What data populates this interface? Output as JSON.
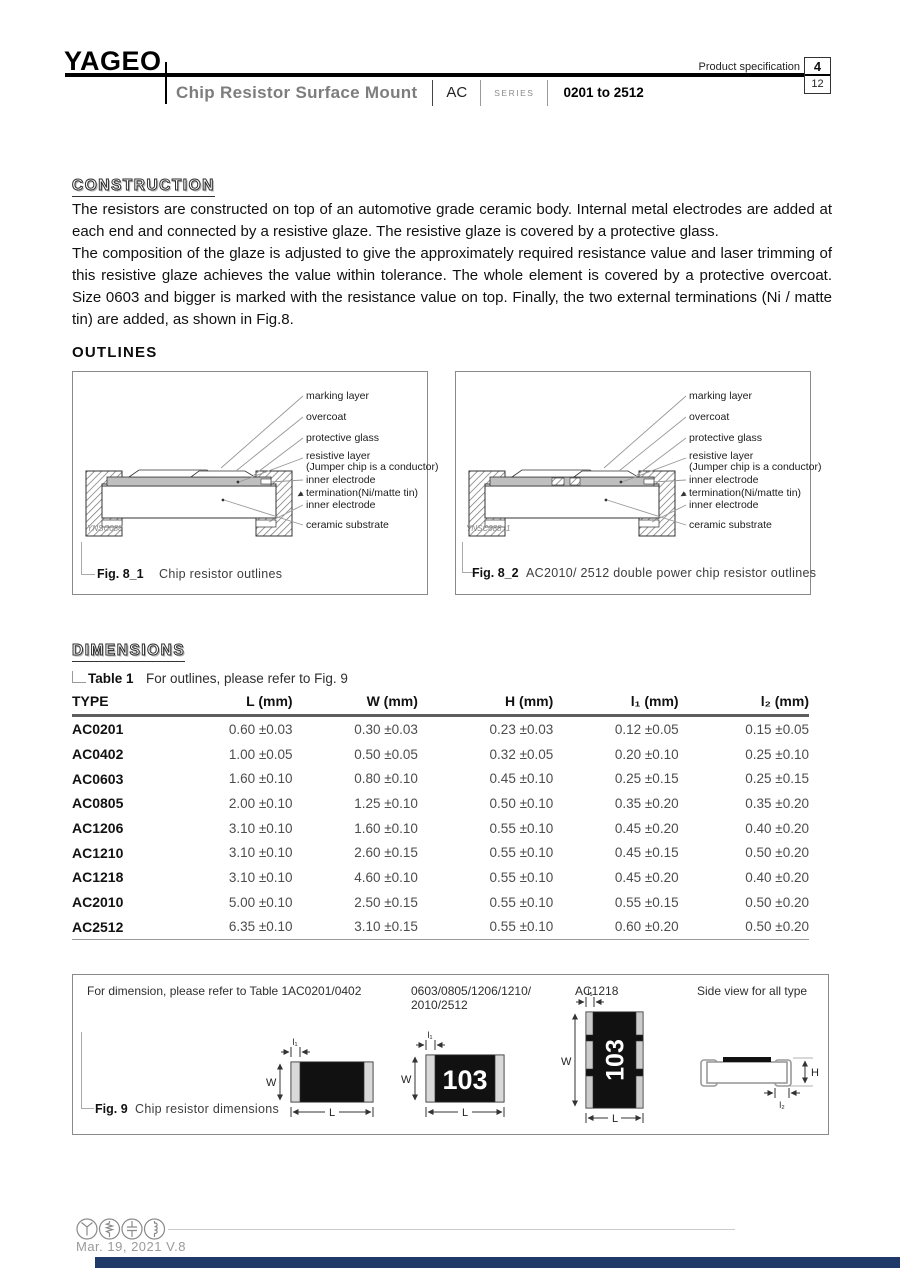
{
  "header": {
    "logo": "YAGEO",
    "product_spec": "Product specification",
    "page_num": "4",
    "page_total": "12",
    "title": "Chip Resistor Surface Mount",
    "series_code": "AC",
    "series_word": "SERIES",
    "series_range": "0201 to 2512"
  },
  "construction": {
    "heading": "CONSTRUCTION",
    "body1": "The resistors are constructed on top of an automotive grade ceramic body. Internal metal electrodes are added at each end and connected by a resistive glaze. The resistive glaze is covered by a protective glass.",
    "body2": "The composition of the glaze is adjusted to give the approximately required resistance value and laser trimming of this resistive glaze achieves the value within tolerance. The whole element is covered by a protective overcoat. Size 0603 and bigger is marked with the resistance value on top. Finally, the two external terminations (Ni / matte tin) are added, as shown in Fig.8."
  },
  "outlines": {
    "heading": "OUTLINES",
    "labels": [
      "marking layer",
      "overcoat",
      "protective glass",
      "resistive layer",
      "(Jumper chip is a conductor)",
      "inner electrode",
      "termination(Ni/matte tin)",
      "inner electrode",
      "ceramic substrate"
    ],
    "fig1": {
      "watermark": "YNSC088",
      "fig_label": "Fig. 8_1",
      "caption": "Chip resistor outlines"
    },
    "fig2": {
      "watermark": "YNSC088_1",
      "fig_label": "Fig. 8_2",
      "caption": "AC2010/ 2512 double power chip resistor outlines"
    }
  },
  "dimensions": {
    "heading": "DIMENSIONS",
    "table_label": "Table 1",
    "table_note": "For outlines, please refer to Fig. 9",
    "table": {
      "headers": [
        "TYPE",
        "L (mm)",
        "W (mm)",
        "H (mm)",
        "l₁ (mm)",
        "l₂ (mm)"
      ],
      "rows": [
        [
          "AC0201",
          "0.60 ±0.03",
          "0.30 ±0.03",
          "0.23 ±0.03",
          "0.12 ±0.05",
          "0.15 ±0.05"
        ],
        [
          "AC0402",
          "1.00 ±0.05",
          "0.50 ±0.05",
          "0.32 ±0.05",
          "0.20 ±0.10",
          "0.25 ±0.10"
        ],
        [
          "AC0603",
          "1.60 ±0.10",
          "0.80 ±0.10",
          "0.45 ±0.10",
          "0.25 ±0.15",
          "0.25 ±0.15"
        ],
        [
          "AC0805",
          "2.00 ±0.10",
          "1.25 ±0.10",
          "0.50 ±0.10",
          "0.35 ±0.20",
          "0.35 ±0.20"
        ],
        [
          "AC1206",
          "3.10 ±0.10",
          "1.60 ±0.10",
          "0.55 ±0.10",
          "0.45 ±0.20",
          "0.40 ±0.20"
        ],
        [
          "AC1210",
          "3.10 ±0.10",
          "2.60 ±0.15",
          "0.55 ±0.10",
          "0.45 ±0.15",
          "0.50 ±0.20"
        ],
        [
          "AC1218",
          "3.10 ±0.10",
          "4.60 ±0.10",
          "0.55 ±0.10",
          "0.45 ±0.20",
          "0.40 ±0.20"
        ],
        [
          "AC2010",
          "5.00 ±0.10",
          "2.50 ±0.15",
          "0.55 ±0.10",
          "0.55 ±0.15",
          "0.50 ±0.20"
        ],
        [
          "AC2512",
          "6.35 ±0.10",
          "3.10 ±0.15",
          "0.55 ±0.10",
          "0.60 ±0.20",
          "0.50 ±0.20"
        ]
      ]
    }
  },
  "fig9": {
    "note": "For dimension, please refer to Table 1",
    "group1": "AC0201/0402",
    "group2a": "0603/0805/1206/1210/",
    "group2b": "2010/2512",
    "group3": "AC1218",
    "side_label": "Side view for all type",
    "marking": "103",
    "dim_w": "W",
    "dim_l": "L",
    "dim_h": "H",
    "dim_l1": "l₁",
    "dim_l2": "l₂",
    "fig_label": "Fig. 9",
    "caption": "Chip resistor dimensions"
  },
  "footer": {
    "date": "Mar. 19, 2021  V.8"
  }
}
